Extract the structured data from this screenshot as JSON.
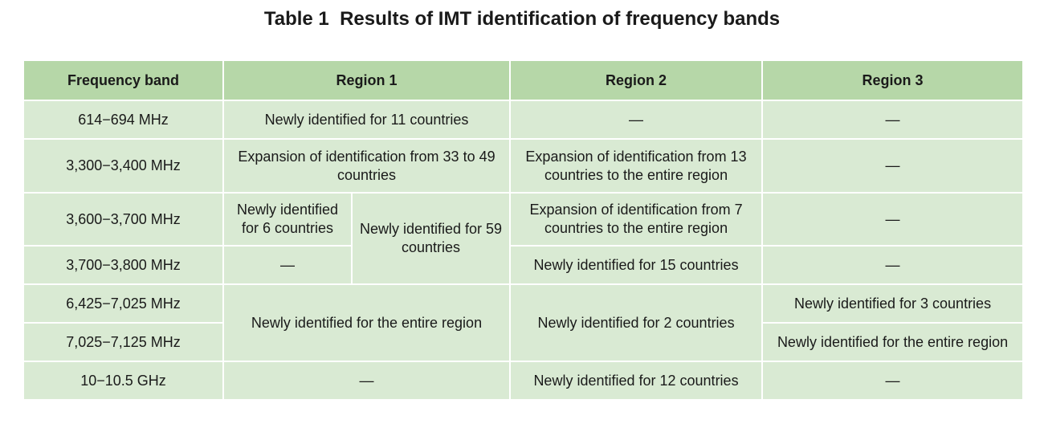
{
  "title": "Table 1  Results of IMT identification of frequency bands",
  "headers": {
    "band": "Frequency band",
    "region1": "Region 1",
    "region2": "Region 2",
    "region3": "Region 3"
  },
  "rows": [
    {
      "band": "614−694 MHz",
      "region1": "Newly identified for 11 countries",
      "region2": "—",
      "region3": "—"
    },
    {
      "band": "3,300−3,400 MHz",
      "region1": "Expansion of identification from 33 to 49 countries",
      "region2": "Expansion of identification from 13 countries to the entire region",
      "region3": "—"
    },
    {
      "band": "3,600−3,700 MHz",
      "region1_a": "Newly identified for 6 countries",
      "region1_b": "Newly identified for 59 countries",
      "region2": "Expansion of identification from 7 countries to the entire region",
      "region3": "—"
    },
    {
      "band": "3,700−3,800 MHz",
      "region1_a": "—",
      "region2": "Newly identified for 15 countries",
      "region3": "—"
    },
    {
      "band": "6,425−7,025 MHz",
      "region1": "Newly identified for the entire region",
      "region2": "Newly identified for 2 countries",
      "region3": "Newly identified for 3 countries"
    },
    {
      "band": "7,025−7,125 MHz",
      "region3": "Newly identified for the entire region"
    },
    {
      "band": "10−10.5 GHz",
      "region1": "—",
      "region2": "Newly identified for 12 countries",
      "region3": "—"
    }
  ],
  "colors": {
    "header_bg": "#b6d7a8",
    "cell_bg": "#d9ead3",
    "border": "#ffffff"
  }
}
